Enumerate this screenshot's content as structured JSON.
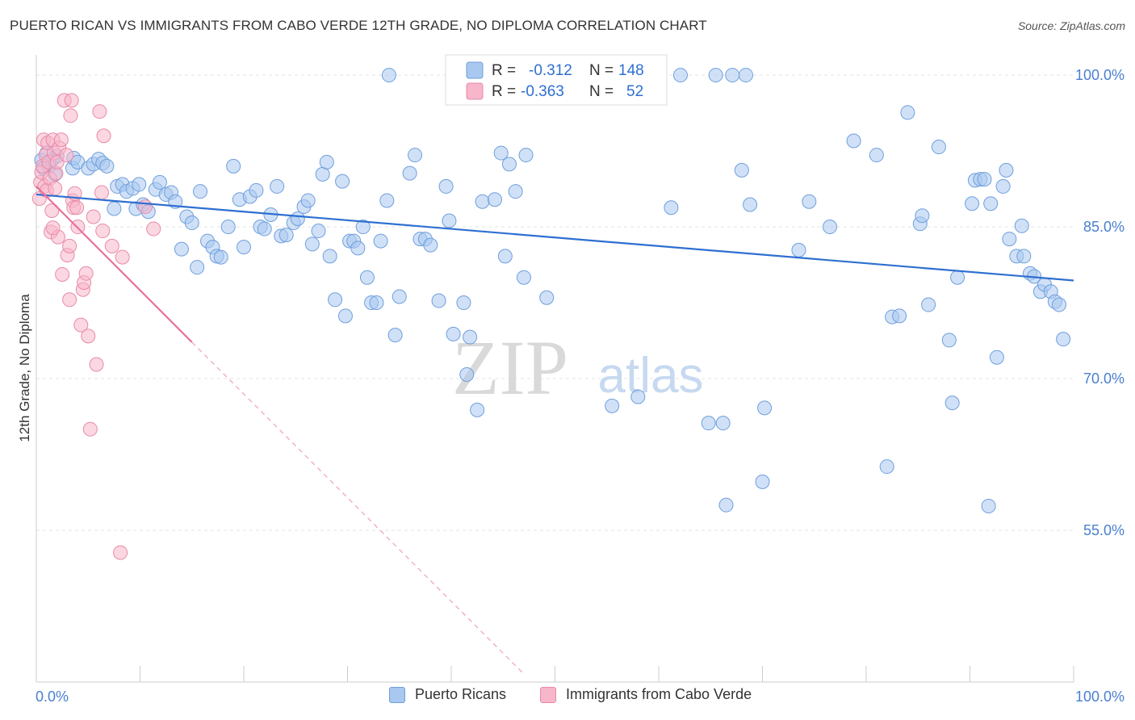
{
  "header": {
    "title": "PUERTO RICAN VS IMMIGRANTS FROM CABO VERDE 12TH GRADE, NO DIPLOMA CORRELATION CHART",
    "source": "Source: ZipAtlas.com"
  },
  "watermark": {
    "zip": "ZIP",
    "atlas": "atlas"
  },
  "legend": {
    "r_label": "R =",
    "n_label": "N =",
    "rows": [
      {
        "r": "-0.312",
        "n": "148",
        "color": "#a9c8f0",
        "stroke": "#6f9fdc"
      },
      {
        "r": "-0.363",
        "n": "52",
        "color": "#f7b6ca",
        "stroke": "#e98aa8"
      }
    ]
  },
  "chart_data": {
    "type": "scatter",
    "title": "PUERTO RICAN VS IMMIGRANTS FROM CABO VERDE 12TH GRADE, NO DIPLOMA CORRELATION CHART",
    "xlabel": "",
    "ylabel": "12th Grade, No Diploma",
    "xlim": [
      0,
      100
    ],
    "ylim": [
      40,
      102
    ],
    "x_tick_labels": [
      "0.0%",
      "100.0%"
    ],
    "y_ticks": [
      {
        "value": 100,
        "label": "100.0%"
      },
      {
        "value": 85,
        "label": "85.0%"
      },
      {
        "value": 70,
        "label": "70.0%"
      },
      {
        "value": 55,
        "label": "55.0%"
      }
    ],
    "grid": true,
    "legend_position": "top-center",
    "series": [
      {
        "name": "Puerto Ricans",
        "color": "#a9c8f0",
        "stroke": "#6f9fdc",
        "trend": {
          "x": [
            0,
            100
          ],
          "y": [
            88.2,
            79.7
          ],
          "color": "#2e6fd0"
        },
        "points": [
          [
            0.5,
            91.6
          ],
          [
            0.7,
            90.8
          ],
          [
            1.0,
            92.3
          ],
          [
            1.2,
            91.0
          ],
          [
            1.5,
            91.6
          ],
          [
            1.8,
            90.2
          ],
          [
            2.0,
            92.0
          ],
          [
            3.5,
            90.8
          ],
          [
            3.6,
            91.8
          ],
          [
            4.0,
            91.4
          ],
          [
            5.0,
            90.8
          ],
          [
            5.5,
            91.2
          ],
          [
            6.0,
            91.7
          ],
          [
            6.4,
            91.3
          ],
          [
            6.8,
            91.0
          ],
          [
            7.5,
            86.8
          ],
          [
            7.8,
            89.0
          ],
          [
            8.3,
            89.2
          ],
          [
            8.7,
            88.5
          ],
          [
            9.3,
            88.8
          ],
          [
            9.6,
            86.8
          ],
          [
            9.9,
            89.2
          ],
          [
            10.3,
            87.2
          ],
          [
            10.8,
            86.5
          ],
          [
            11.5,
            88.7
          ],
          [
            11.9,
            89.4
          ],
          [
            12.5,
            88.2
          ],
          [
            13.0,
            88.4
          ],
          [
            13.4,
            87.5
          ],
          [
            14.0,
            82.8
          ],
          [
            14.5,
            86.0
          ],
          [
            15.0,
            85.4
          ],
          [
            15.5,
            81.0
          ],
          [
            15.8,
            88.5
          ],
          [
            16.5,
            83.6
          ],
          [
            17.0,
            83.0
          ],
          [
            17.4,
            82.1
          ],
          [
            17.8,
            82.0
          ],
          [
            18.5,
            85.0
          ],
          [
            19.0,
            91.0
          ],
          [
            19.6,
            87.7
          ],
          [
            20.0,
            83.0
          ],
          [
            20.6,
            88.0
          ],
          [
            21.2,
            88.6
          ],
          [
            21.6,
            85.0
          ],
          [
            22.0,
            84.8
          ],
          [
            22.6,
            86.2
          ],
          [
            23.2,
            89.0
          ],
          [
            23.6,
            84.1
          ],
          [
            24.1,
            84.2
          ],
          [
            24.8,
            85.4
          ],
          [
            25.2,
            85.8
          ],
          [
            25.8,
            87.0
          ],
          [
            26.2,
            87.6
          ],
          [
            26.6,
            83.3
          ],
          [
            27.2,
            84.6
          ],
          [
            27.6,
            90.2
          ],
          [
            28.0,
            91.4
          ],
          [
            28.3,
            82.1
          ],
          [
            28.8,
            77.8
          ],
          [
            29.5,
            89.5
          ],
          [
            29.8,
            76.2
          ],
          [
            30.2,
            83.6
          ],
          [
            30.6,
            83.6
          ],
          [
            31.0,
            82.9
          ],
          [
            31.5,
            85.0
          ],
          [
            31.9,
            80.0
          ],
          [
            32.3,
            77.5
          ],
          [
            32.8,
            77.5
          ],
          [
            33.2,
            83.6
          ],
          [
            33.8,
            87.6
          ],
          [
            34.6,
            74.3
          ],
          [
            35.0,
            78.1
          ],
          [
            36.0,
            90.3
          ],
          [
            36.5,
            92.1
          ],
          [
            37.0,
            83.8
          ],
          [
            37.5,
            83.8
          ],
          [
            38.0,
            83.2
          ],
          [
            38.8,
            77.7
          ],
          [
            39.5,
            89.0
          ],
          [
            39.8,
            85.6
          ],
          [
            40.2,
            74.4
          ],
          [
            41.2,
            77.5
          ],
          [
            41.5,
            70.4
          ],
          [
            41.8,
            74.1
          ],
          [
            42.5,
            66.9
          ],
          [
            43.0,
            87.5
          ],
          [
            44.2,
            87.7
          ],
          [
            44.8,
            92.3
          ],
          [
            45.2,
            82.1
          ],
          [
            45.6,
            91.2
          ],
          [
            46.2,
            88.5
          ],
          [
            47.0,
            80.0
          ],
          [
            47.2,
            92.1
          ],
          [
            49.2,
            78.0
          ],
          [
            55.5,
            67.3
          ],
          [
            58.0,
            68.2
          ],
          [
            61.2,
            86.9
          ],
          [
            64.8,
            65.6
          ],
          [
            66.2,
            65.6
          ],
          [
            66.5,
            57.5
          ],
          [
            68.0,
            90.6
          ],
          [
            68.8,
            87.2
          ],
          [
            70.0,
            59.8
          ],
          [
            70.2,
            67.1
          ],
          [
            73.5,
            82.7
          ],
          [
            74.5,
            87.5
          ],
          [
            76.5,
            85.0
          ],
          [
            78.8,
            93.5
          ],
          [
            81.0,
            92.1
          ],
          [
            82.0,
            61.3
          ],
          [
            82.5,
            76.1
          ],
          [
            83.2,
            76.2
          ],
          [
            84.0,
            96.3
          ],
          [
            85.2,
            85.3
          ],
          [
            85.4,
            86.1
          ],
          [
            86.0,
            77.3
          ],
          [
            87.0,
            92.9
          ],
          [
            88.0,
            73.8
          ],
          [
            88.3,
            67.6
          ],
          [
            88.8,
            80.0
          ],
          [
            90.2,
            87.3
          ],
          [
            90.5,
            89.6
          ],
          [
            91.0,
            89.7
          ],
          [
            91.4,
            89.7
          ],
          [
            91.8,
            57.4
          ],
          [
            92.0,
            87.3
          ],
          [
            92.6,
            72.1
          ],
          [
            93.2,
            89.0
          ],
          [
            93.5,
            90.6
          ],
          [
            93.8,
            83.8
          ],
          [
            94.5,
            82.1
          ],
          [
            95.0,
            85.1
          ],
          [
            95.2,
            82.1
          ],
          [
            95.8,
            80.4
          ],
          [
            96.2,
            80.1
          ],
          [
            96.8,
            78.6
          ],
          [
            97.2,
            79.3
          ],
          [
            97.8,
            78.6
          ],
          [
            98.2,
            77.6
          ],
          [
            98.6,
            77.3
          ],
          [
            99.0,
            73.9
          ],
          [
            34.0,
            100
          ],
          [
            51.3,
            100
          ],
          [
            53.4,
            100
          ],
          [
            59.7,
            100
          ],
          [
            62.1,
            100
          ],
          [
            65.5,
            100
          ],
          [
            67.1,
            100
          ],
          [
            68.4,
            100
          ]
        ]
      },
      {
        "name": "Immigrants from Cabo Verde",
        "color": "#f7b6ca",
        "stroke": "#e98aa8",
        "trend": {
          "x": [
            0,
            15
          ],
          "y": [
            89.0,
            73.6
          ],
          "color": "#e8729a"
        },
        "trend_dashed": {
          "x": [
            15,
            47
          ],
          "y": [
            73.6,
            40.8
          ],
          "color": "#f2b3c6"
        },
        "points": [
          [
            0.3,
            87.8
          ],
          [
            0.4,
            89.4
          ],
          [
            0.5,
            90.4
          ],
          [
            0.6,
            91.0
          ],
          [
            0.7,
            93.6
          ],
          [
            0.8,
            89.0
          ],
          [
            0.9,
            92.1
          ],
          [
            1.0,
            88.6
          ],
          [
            1.1,
            93.3
          ],
          [
            1.2,
            91.4
          ],
          [
            1.3,
            89.8
          ],
          [
            1.4,
            84.5
          ],
          [
            1.5,
            86.6
          ],
          [
            1.6,
            93.6
          ],
          [
            1.7,
            92.3
          ],
          [
            1.8,
            88.8
          ],
          [
            1.9,
            90.3
          ],
          [
            2.0,
            91.4
          ],
          [
            2.1,
            84.0
          ],
          [
            2.2,
            92.8
          ],
          [
            1.6,
            84.9
          ],
          [
            2.4,
            93.6
          ],
          [
            2.5,
            80.3
          ],
          [
            2.7,
            97.5
          ],
          [
            2.9,
            92.1
          ],
          [
            3.0,
            82.2
          ],
          [
            3.2,
            83.1
          ],
          [
            3.2,
            77.8
          ],
          [
            3.3,
            96.0
          ],
          [
            3.4,
            97.5
          ],
          [
            3.5,
            87.6
          ],
          [
            3.6,
            86.9
          ],
          [
            3.7,
            88.3
          ],
          [
            3.9,
            86.9
          ],
          [
            4.0,
            85.0
          ],
          [
            4.3,
            75.3
          ],
          [
            4.5,
            78.8
          ],
          [
            4.6,
            79.5
          ],
          [
            4.8,
            80.4
          ],
          [
            5.0,
            74.2
          ],
          [
            5.2,
            65.0
          ],
          [
            5.5,
            86.0
          ],
          [
            5.8,
            71.4
          ],
          [
            6.1,
            96.4
          ],
          [
            6.5,
            94.0
          ],
          [
            6.3,
            88.4
          ],
          [
            6.4,
            84.6
          ],
          [
            7.3,
            83.1
          ],
          [
            8.1,
            52.8
          ],
          [
            8.3,
            82.0
          ],
          [
            10.5,
            87.0
          ],
          [
            11.3,
            84.8
          ]
        ]
      }
    ]
  },
  "bottom_legend": [
    {
      "label": "Puerto Ricans",
      "color": "#a9c8f0",
      "stroke": "#6f9fdc"
    },
    {
      "label": "Immigrants from Cabo Verde",
      "color": "#f7b6ca",
      "stroke": "#e98aa8"
    }
  ]
}
